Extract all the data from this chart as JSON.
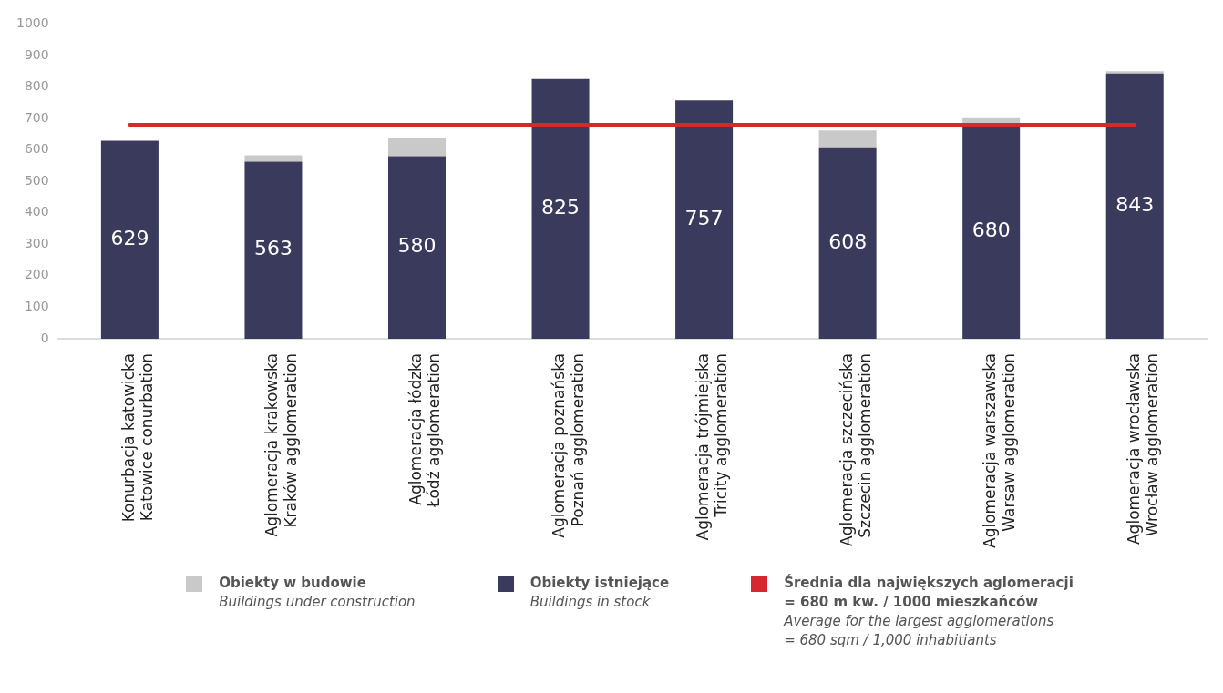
{
  "chart_data": {
    "type": "bar",
    "stacked": true,
    "categories": [
      "Konurbacja katowicka\nKatowice conurbation",
      "Aglomeracja krakowska\nKraków agglomeration",
      "Aglomeracja łódzka\nŁódź agglomeration",
      "Aglomeracja poznańska\nPoznań agglomeration",
      "Aglomeracja trójmiejska\nTricity agglomeration",
      "Aglomeracja szczecińska\nSzczecin agglomeration",
      "Aglomeracja warszawska\nWarsaw agglomeration",
      "Aglomeracja wrocławska\nWrocław agglomeration"
    ],
    "series": [
      {
        "name": "Obiekty istniejące\nBuildings in stock",
        "color": "#3a3b5c",
        "values": [
          629,
          563,
          580,
          825,
          757,
          608,
          680,
          843
        ],
        "value_labels": [
          "629",
          "563",
          "580",
          "825",
          "757",
          "608",
          "680",
          "843"
        ]
      },
      {
        "name": "Obiekty w budowie\nBuildings under construction",
        "color": "#c9c9c9",
        "values": [
          null,
          20,
          57,
          0,
          0,
          54,
          21,
          7
        ]
      }
    ],
    "ylim": [
      0,
      1000
    ],
    "yticks": [
      0,
      100,
      200,
      300,
      400,
      500,
      600,
      700,
      800,
      900,
      1000
    ],
    "grid": false,
    "legend": "bottom",
    "ref_lines": [
      {
        "axis": "y",
        "value": 680,
        "label": "Średnia dla największych aglomeracji\n= 680  m kw. / 1000 mieszkańców\nAverage for the largest agglomerations\n= 680 sqm / 1,000 inhabitiants",
        "color": "#d7282f"
      }
    ]
  }
}
